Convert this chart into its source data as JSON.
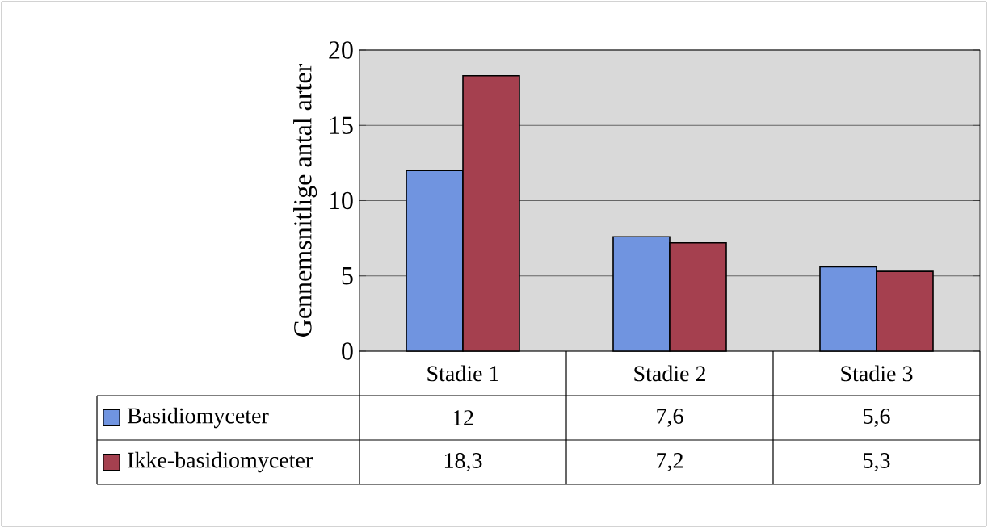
{
  "chart_data": {
    "type": "bar",
    "ylabel": "Gennemsnitlige antal arter",
    "categories": [
      "Stadie 1",
      "Stadie 2",
      "Stadie 3"
    ],
    "series": [
      {
        "name": "Basidiomyceter",
        "color": "#7094e0",
        "values": [
          12,
          7.6,
          5.6
        ],
        "value_labels": [
          "12",
          "7,6",
          "5,6"
        ]
      },
      {
        "name": "Ikke-basidiomyceter",
        "color": "#a5404f",
        "values": [
          18.3,
          7.2,
          5.3
        ],
        "value_labels": [
          "18,3",
          "7,2",
          "5,3"
        ]
      }
    ],
    "ylim": [
      0,
      20
    ],
    "yticks": [
      0,
      5,
      10,
      15,
      20
    ],
    "grid": "y",
    "legend": "bottom left"
  }
}
